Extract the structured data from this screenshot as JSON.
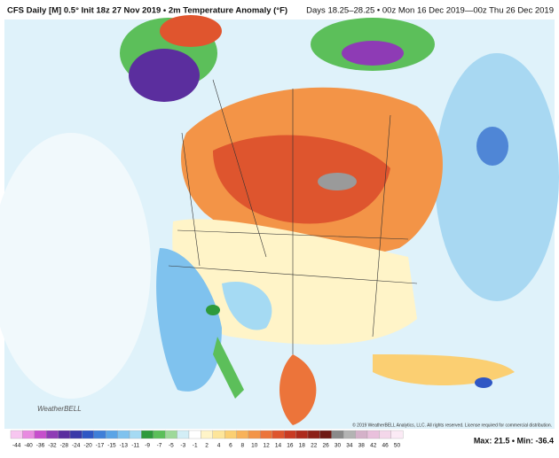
{
  "header": {
    "left": "CFS Daily [M] 0.5° Init 18z 27 Nov 2019 • 2m Temperature Anomaly (°F)",
    "right": "Days 18.25–28.25 • 00z Mon 16 Dec 2019—00z Thu 26 Dec 2019"
  },
  "map": {
    "logo": "WeatherBELL",
    "credit": "© 2019 WeatherBELL Analytics, LLC. All rights reserved. License required for commercial distribution."
  },
  "colorbar": {
    "labels": [
      "-44",
      "-40",
      "-36",
      "-32",
      "-28",
      "-24",
      "-20",
      "-17",
      "-15",
      "-13",
      "-11",
      "-9",
      "-7",
      "-5",
      "-3",
      "-1",
      "2",
      "4",
      "6",
      "8",
      "10",
      "12",
      "14",
      "16",
      "18",
      "22",
      "26",
      "30",
      "34",
      "38",
      "42",
      "46",
      "50"
    ],
    "colors": [
      "#f7c6f0",
      "#e88ae0",
      "#c64fcc",
      "#8e3bb5",
      "#5b2e9e",
      "#3a3aa8",
      "#2f57c4",
      "#3f7fd8",
      "#5aa4e6",
      "#7fc2ee",
      "#a5daf3",
      "#2e9a3c",
      "#5cbf5a",
      "#9ed99a",
      "#d3eef6",
      "#ffffff",
      "#fff4c8",
      "#fde59a",
      "#fbcf72",
      "#f8b25a",
      "#f39447",
      "#ec743a",
      "#de552e",
      "#c93a23",
      "#ad2a1c",
      "#8c2017",
      "#6e1a14",
      "#8a8a8a",
      "#b3b3b3",
      "#d4b1c9",
      "#e9c0dc",
      "#f4d7ea",
      "#fbeaf5"
    ],
    "stats": "Max: 21.5 • Min: -36.4"
  }
}
